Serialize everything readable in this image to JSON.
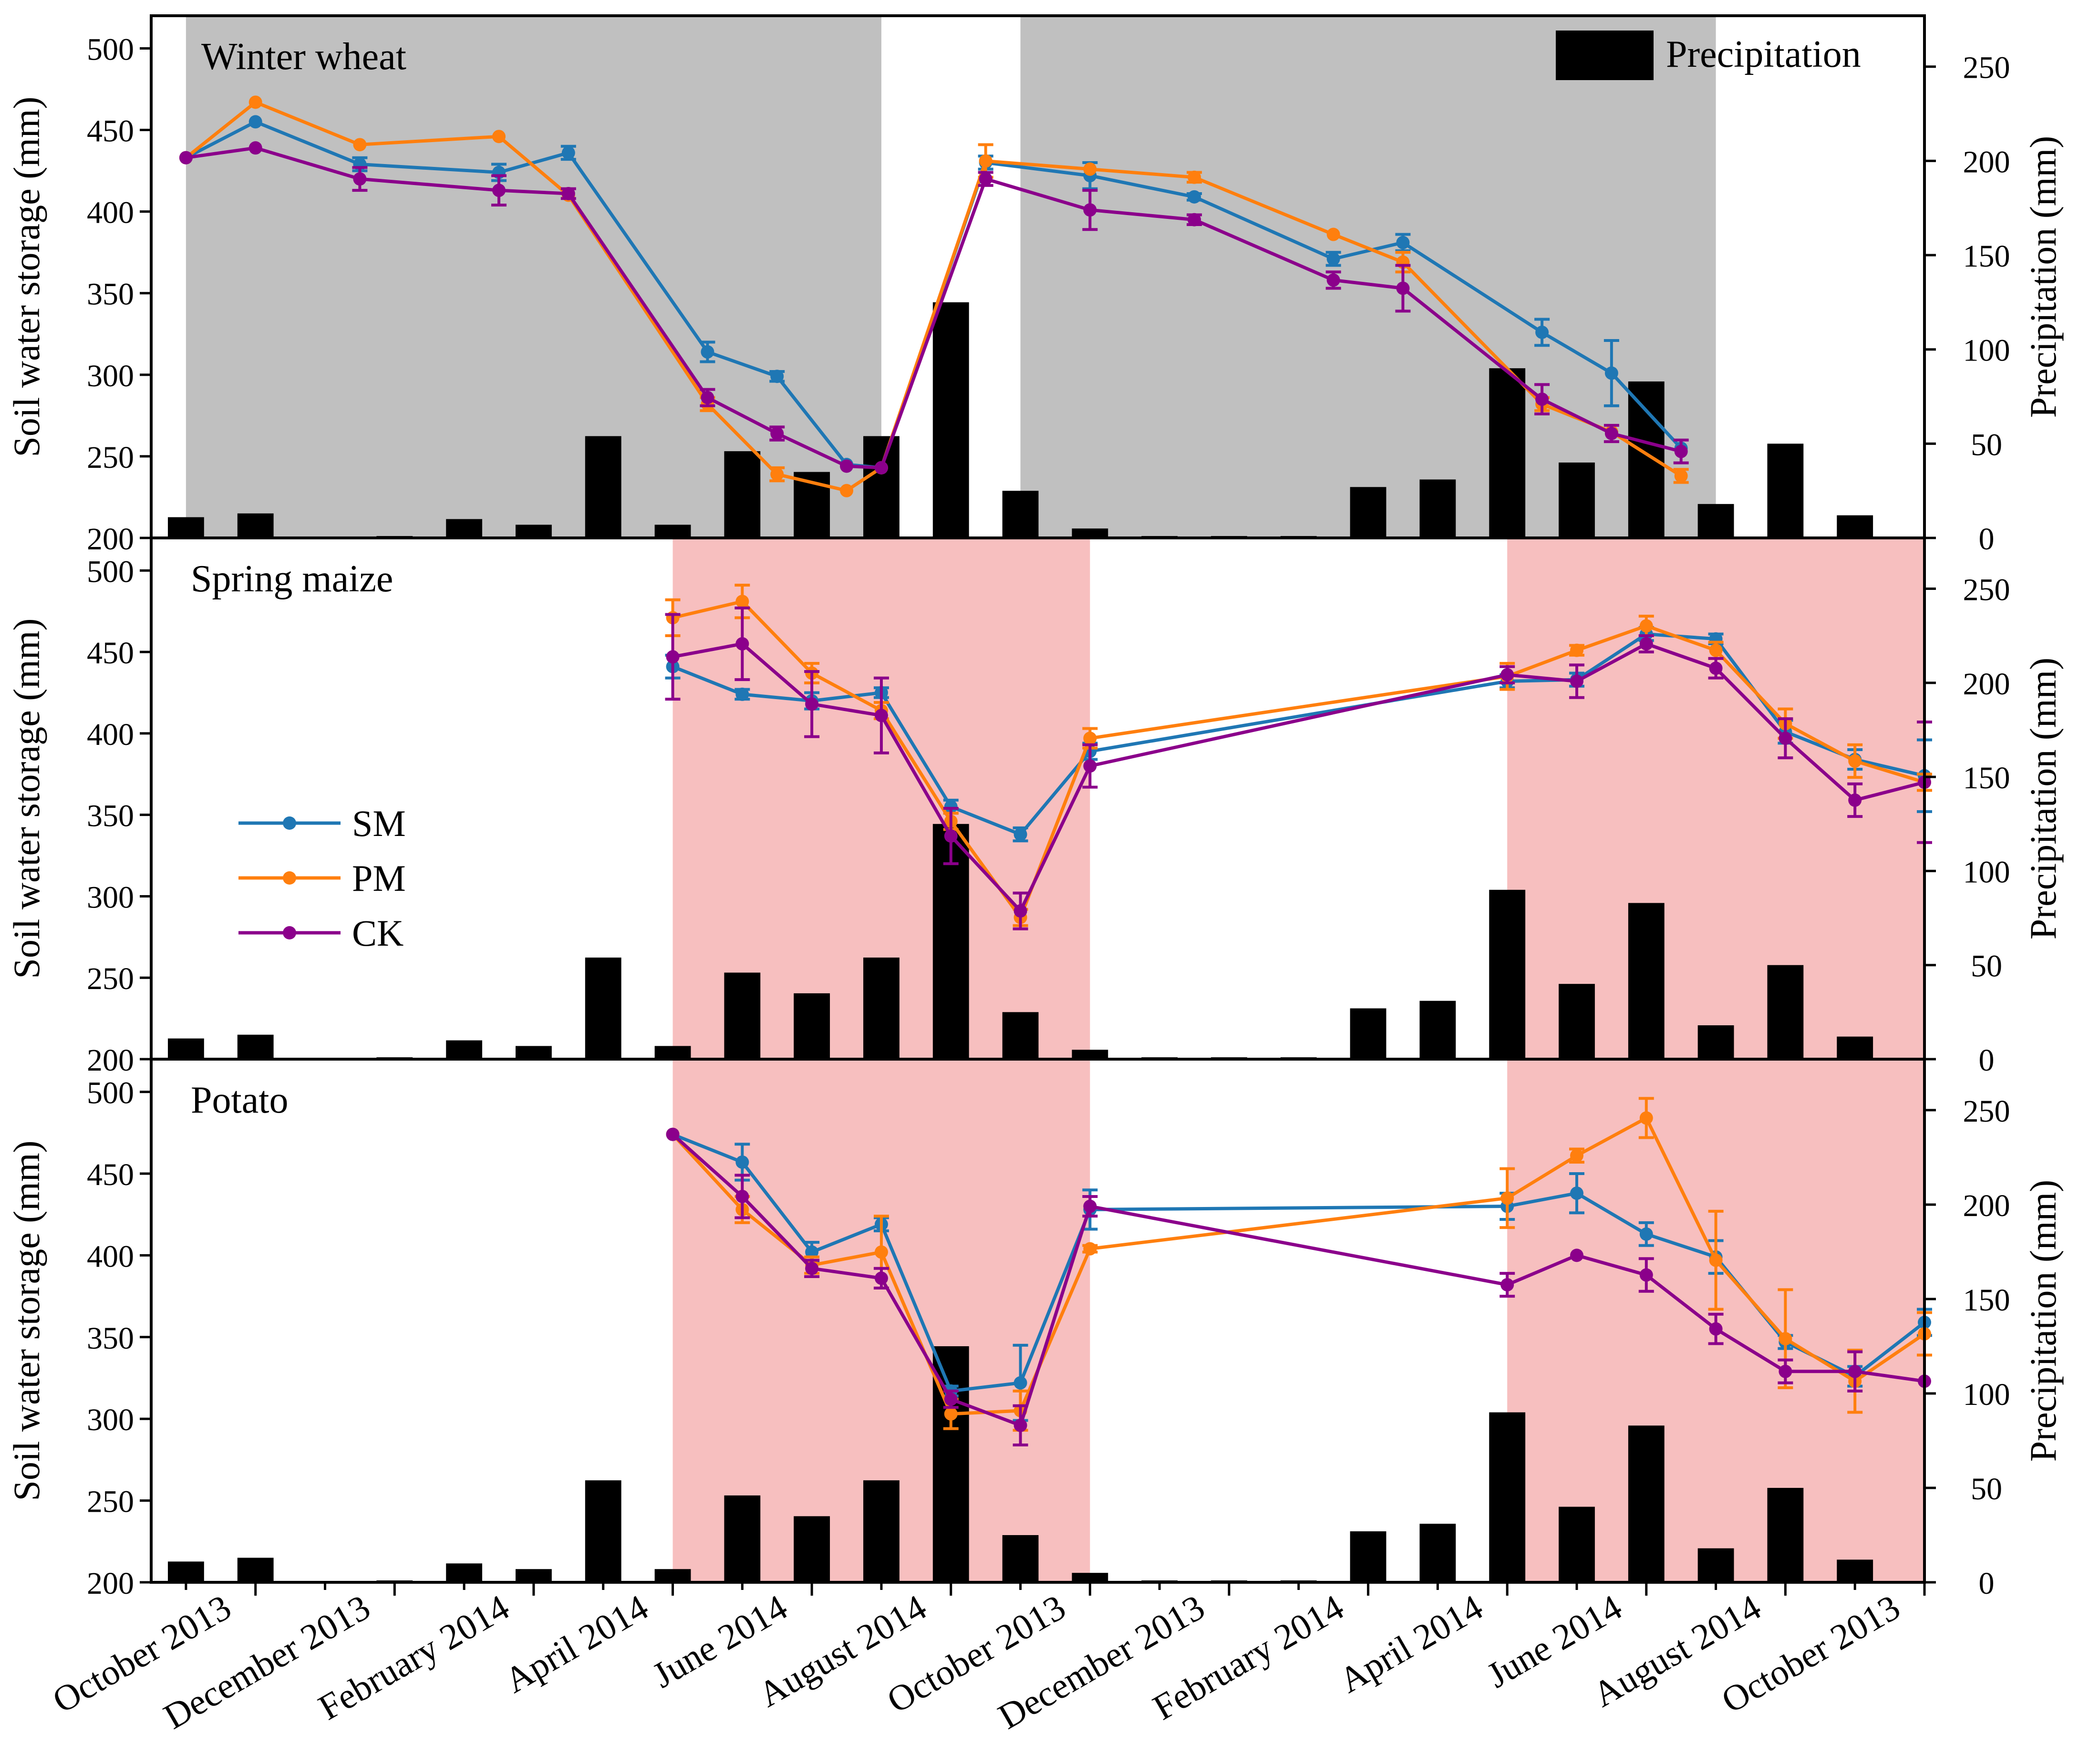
{
  "colors": {
    "SM": "#1f77b4",
    "PM": "#ff7f0e",
    "CK": "#8b008b",
    "bar": "#000000",
    "wheat_shade": "#c0c0c0",
    "maize_shade": "#f7bfbf"
  },
  "legend": {
    "precipitation": "Precipitation",
    "series": [
      "SM",
      "PM",
      "CK"
    ]
  },
  "x_tick_labels": [
    "October 2013",
    "December 2013",
    "February 2014",
    "April 2014",
    "June 2014",
    "August 2014",
    "October 2013",
    "December 2013",
    "February 2014",
    "April 2014",
    "June 2014",
    "August 2014",
    "October 2013"
  ],
  "chart_data": [
    {
      "type": "line",
      "title": "Winter wheat",
      "ylabel": "Soil water storage (mm)",
      "y2label": "Precipitation (mm)",
      "ylim": [
        200,
        520
      ],
      "y2lim": [
        0,
        277
      ],
      "yticks": [
        200,
        250,
        300,
        350,
        400,
        450,
        500
      ],
      "y2ticks": [
        0,
        50,
        100,
        150,
        200,
        250
      ],
      "shaded_periods": [
        [
          0.5,
          10.5
        ],
        [
          12.5,
          22.5
        ]
      ],
      "precipitation": [
        11,
        13,
        0,
        1,
        10,
        7,
        54,
        7,
        46,
        35,
        54,
        125,
        25,
        5,
        1,
        1,
        1,
        27,
        31,
        90,
        40,
        83,
        18,
        50,
        12
      ],
      "series": [
        {
          "name": "SM",
          "x": [
            0.5,
            1.5,
            3,
            5,
            6,
            8,
            9,
            10,
            10.5,
            12,
            13.5,
            15,
            17,
            18,
            20,
            21,
            22
          ],
          "values": [
            433,
            455,
            429,
            424,
            436,
            314,
            299,
            245,
            243,
            430,
            422,
            409,
            371,
            381,
            326,
            301,
            255
          ],
          "err": [
            0,
            0,
            4,
            5,
            4,
            6,
            3,
            0,
            0,
            4,
            8,
            2,
            4,
            5,
            8,
            20,
            0
          ]
        },
        {
          "name": "PM",
          "x": [
            0.5,
            1.5,
            3,
            5,
            6,
            8,
            9,
            10,
            10.5,
            12,
            13.5,
            15,
            17,
            18,
            20,
            21,
            22
          ],
          "values": [
            433,
            467,
            441,
            446,
            410,
            282,
            239,
            229,
            243,
            431,
            426,
            421,
            386,
            369,
            282,
            265,
            238
          ],
          "err": [
            0,
            0,
            0,
            0,
            0,
            4,
            4,
            0,
            0,
            10,
            0,
            3,
            0,
            6,
            4,
            0,
            4
          ]
        },
        {
          "name": "CK",
          "x": [
            0.5,
            1.5,
            3,
            5,
            6,
            8,
            9,
            10,
            10.5,
            12,
            13.5,
            15,
            17,
            18,
            20,
            21,
            22
          ],
          "values": [
            433,
            439,
            420,
            413,
            411,
            286,
            264,
            244,
            243,
            420,
            401,
            395,
            358,
            353,
            285,
            264,
            253
          ],
          "err": [
            0,
            0,
            7,
            9,
            3,
            5,
            4,
            0,
            0,
            4,
            12,
            3,
            5,
            14,
            9,
            5,
            7
          ]
        }
      ]
    },
    {
      "type": "line",
      "title": "Spring maize",
      "ylabel": "Soil water storage (mm)",
      "y2label": "Precipitation (mm)",
      "ylim": [
        200,
        520
      ],
      "y2lim": [
        0,
        277
      ],
      "yticks": [
        200,
        250,
        300,
        350,
        400,
        450,
        500
      ],
      "y2ticks": [
        0,
        50,
        100,
        150,
        200,
        250
      ],
      "shaded_periods": [
        [
          7.5,
          13.5
        ],
        [
          19.5,
          25.5
        ]
      ],
      "precipitation": [
        11,
        13,
        0,
        1,
        10,
        7,
        54,
        7,
        46,
        35,
        54,
        125,
        25,
        5,
        1,
        1,
        1,
        27,
        31,
        90,
        40,
        83,
        18,
        50,
        12
      ],
      "series": [
        {
          "name": "SM",
          "x": [
            7.5,
            8.5,
            9.5,
            10.5,
            11.5,
            12.5,
            13.5,
            19.5,
            20.5,
            21.5,
            22.5,
            23.5,
            24.5,
            25.5
          ],
          "values": [
            441,
            424,
            420,
            425,
            355,
            338,
            389,
            432,
            433,
            461,
            458,
            401,
            384,
            374
          ],
          "err": [
            7,
            3,
            5,
            3,
            4,
            4,
            5,
            4,
            4,
            4,
            3,
            7,
            6,
            22
          ]
        },
        {
          "name": "PM",
          "x": [
            7.5,
            8.5,
            9.5,
            10.5,
            11.5,
            12.5,
            13.5,
            19.5,
            20.5,
            21.5,
            22.5,
            23.5,
            24.5,
            25.5
          ],
          "values": [
            471,
            481,
            437,
            414,
            346,
            287,
            397,
            435,
            451,
            466,
            451,
            406,
            383,
            370
          ],
          "err": [
            11,
            10,
            6,
            5,
            5,
            5,
            6,
            8,
            3,
            6,
            5,
            9,
            10,
            5
          ]
        },
        {
          "name": "CK",
          "x": [
            7.5,
            8.5,
            9.5,
            10.5,
            11.5,
            12.5,
            13.5,
            19.5,
            20.5,
            21.5,
            22.5,
            23.5,
            24.5,
            25.5
          ],
          "values": [
            447,
            455,
            418,
            411,
            337,
            291,
            380,
            436,
            432,
            455,
            440,
            397,
            359,
            370
          ],
          "err": [
            26,
            22,
            20,
            23,
            17,
            11,
            13,
            5,
            10,
            5,
            6,
            12,
            10,
            37
          ]
        }
      ]
    },
    {
      "type": "line",
      "title": "Potato",
      "ylabel": "Soil water storage (mm)",
      "y2label": "Precipitation (mm)",
      "ylim": [
        200,
        520
      ],
      "y2lim": [
        0,
        277
      ],
      "yticks": [
        200,
        250,
        300,
        350,
        400,
        450,
        500
      ],
      "y2ticks": [
        0,
        50,
        100,
        150,
        200,
        250
      ],
      "shaded_periods": [
        [
          7.5,
          13.5
        ],
        [
          19.5,
          25.5
        ]
      ],
      "precipitation": [
        11,
        13,
        0,
        1,
        10,
        7,
        54,
        7,
        46,
        35,
        54,
        125,
        25,
        5,
        1,
        1,
        1,
        27,
        31,
        90,
        40,
        83,
        18,
        50,
        12
      ],
      "series": [
        {
          "name": "SM",
          "x": [
            7.5,
            8.5,
            9.5,
            10.5,
            11.5,
            12.5,
            13.5,
            19.5,
            20.5,
            21.5,
            22.5,
            23.5,
            24.5,
            25.5
          ],
          "values": [
            474,
            457,
            402,
            419,
            317,
            322,
            428,
            430,
            438,
            413,
            399,
            347,
            326,
            359
          ],
          "err": [
            0,
            11,
            6,
            4,
            3,
            23,
            12,
            8,
            12,
            7,
            10,
            4,
            6,
            8
          ]
        },
        {
          "name": "PM",
          "x": [
            7.5,
            8.5,
            9.5,
            10.5,
            11.5,
            12.5,
            13.5,
            19.5,
            20.5,
            21.5,
            22.5,
            23.5,
            24.5,
            25.5
          ],
          "values": [
            474,
            428,
            394,
            402,
            303,
            305,
            404,
            435,
            461,
            484,
            397,
            349,
            323,
            352
          ],
          "err": [
            0,
            8,
            5,
            22,
            9,
            12,
            2,
            18,
            4,
            12,
            30,
            30,
            19,
            13
          ]
        },
        {
          "name": "CK",
          "x": [
            7.5,
            8.5,
            9.5,
            10.5,
            11.5,
            12.5,
            13.5,
            19.5,
            20.5,
            21.5,
            22.5,
            23.5,
            24.5,
            25.5
          ],
          "values": [
            474,
            436,
            392,
            386,
            312,
            296,
            430,
            382,
            400,
            388,
            355,
            329,
            329,
            323
          ],
          "err": [
            0,
            13,
            5,
            6,
            5,
            12,
            6,
            7,
            0,
            10,
            9,
            7,
            12,
            0
          ]
        }
      ]
    }
  ]
}
